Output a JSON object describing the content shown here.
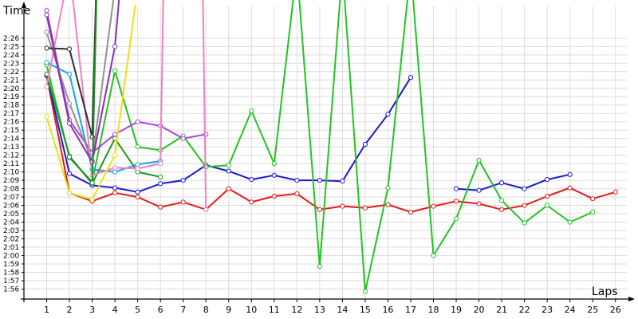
{
  "chart_data": {
    "type": "line",
    "xlabel": "Laps",
    "ylabel": "Time",
    "xlim": [
      0,
      26.5
    ],
    "ylim": [
      114.8,
      149.8
    ],
    "grid": true,
    "legend": "none",
    "x_ticks": [
      "1",
      "2",
      "3",
      "4",
      "5",
      "6",
      "7",
      "8",
      "9",
      "10",
      "11",
      "12",
      "13",
      "14",
      "15",
      "16",
      "17",
      "18",
      "19",
      "20",
      "21",
      "22",
      "23",
      "24",
      "25",
      "26"
    ],
    "y_ticks": [
      "1:56",
      "1:57",
      "1:58",
      "1:59",
      "2:00",
      "2:01",
      "2:02",
      "2:03",
      "2:04",
      "2:05",
      "2:06",
      "2:07",
      "2:08",
      "2:09",
      "2:10",
      "2:11",
      "2:12",
      "2:13",
      "2:14",
      "2:15",
      "2:16",
      "2:17",
      "2:18",
      "2:19",
      "2:20",
      "2:21",
      "2:22",
      "2:23",
      "2:24",
      "2:25",
      "2:26"
    ],
    "series": [
      {
        "color": "#e81818",
        "x": [
          1,
          2,
          3,
          4,
          5,
          6,
          7,
          8,
          9,
          10,
          11,
          12,
          13,
          14,
          15,
          16,
          17,
          18,
          19,
          20,
          21,
          22,
          23,
          24,
          25,
          26
        ],
        "y": [
          141.5,
          127.5,
          126.5,
          127.5,
          127,
          125.8,
          126.4,
          125.5,
          128,
          126.4,
          127.1,
          127.4,
          125.5,
          125.9,
          125.7,
          126.1,
          125.2,
          125.9,
          126.5,
          126.2,
          125.5,
          126,
          127.1,
          128.1,
          126.8,
          127.6
        ]
      },
      {
        "color": "#1818d8",
        "x": [
          1,
          2,
          3,
          4,
          5,
          6,
          7,
          8,
          9,
          10,
          11,
          12,
          13,
          14,
          15,
          16,
          17,
          null,
          19,
          20,
          21,
          22,
          23,
          24
        ],
        "y": [
          141.6,
          129.8,
          128.4,
          128.1,
          127.6,
          128.6,
          129,
          130.8,
          130.1,
          129.1,
          129.6,
          129,
          129,
          128.9,
          133.3,
          136.9,
          141.3,
          null,
          128,
          127.8,
          128.7,
          128,
          129.1,
          129.7
        ]
      },
      {
        "color": "#22c422",
        "x": [
          1,
          2,
          3,
          4,
          5,
          6,
          7,
          8,
          9,
          10,
          11,
          12,
          13,
          14,
          15,
          16,
          17,
          18,
          19,
          20,
          21,
          22,
          23,
          24,
          25
        ],
        "y": [
          142.8,
          131.7,
          128.8,
          142.1,
          133,
          132.6,
          134.3,
          130.6,
          130.8,
          137.3,
          131,
          160,
          118.7,
          160,
          115.7,
          128.1,
          160,
          120,
          124.4,
          131.4,
          126.6,
          123.9,
          126,
          124,
          125.2
        ]
      },
      {
        "color": "#18a6e8",
        "x": [
          1,
          2,
          3,
          4,
          5,
          6
        ],
        "y": [
          143.1,
          141.7,
          130.3,
          130,
          130.9,
          131.3
        ]
      },
      {
        "color": "#1a9a1a",
        "x": [
          1,
          2,
          3,
          4,
          5,
          6
        ],
        "y": [
          141.7,
          131.9,
          128.6,
          134,
          130,
          129.4
        ]
      },
      {
        "color": "#b040e0",
        "x": [
          1,
          2,
          3,
          4,
          5,
          6,
          7,
          8
        ],
        "y": [
          149.3,
          136.2,
          132.3,
          134.5,
          136,
          135.5,
          134,
          134.5
        ]
      },
      {
        "color": "#f080c0",
        "x": [
          1,
          2,
          3,
          4,
          5,
          6,
          6.15,
          7.85,
          8
        ],
        "y": [
          140.2,
          155,
          129.6,
          130.5,
          130.4,
          131,
          160,
          160,
          125.5
        ]
      },
      {
        "color": "#e8e018",
        "x": [
          1,
          2,
          3,
          4,
          4.9
        ],
        "y": [
          136.6,
          127.5,
          126.7,
          132,
          150
        ]
      },
      {
        "color": "#909090",
        "x": [
          1,
          2,
          3,
          4
        ],
        "y": [
          146.7,
          138.2,
          131.3,
          152
        ]
      },
      {
        "color": "#303030",
        "x": [
          1,
          2,
          3,
          3.2
        ],
        "y": [
          144.8,
          144.7,
          134.2,
          156
        ]
      },
      {
        "color": "#8830b0",
        "x": [
          1,
          2,
          3,
          4,
          4.3
        ],
        "y": [
          148.8,
          135.8,
          131.2,
          145,
          156
        ]
      },
      {
        "color": "#209020",
        "x": [
          2,
          3,
          3.2
        ],
        "y": [
          131.8,
          128.7,
          152
        ]
      }
    ]
  }
}
